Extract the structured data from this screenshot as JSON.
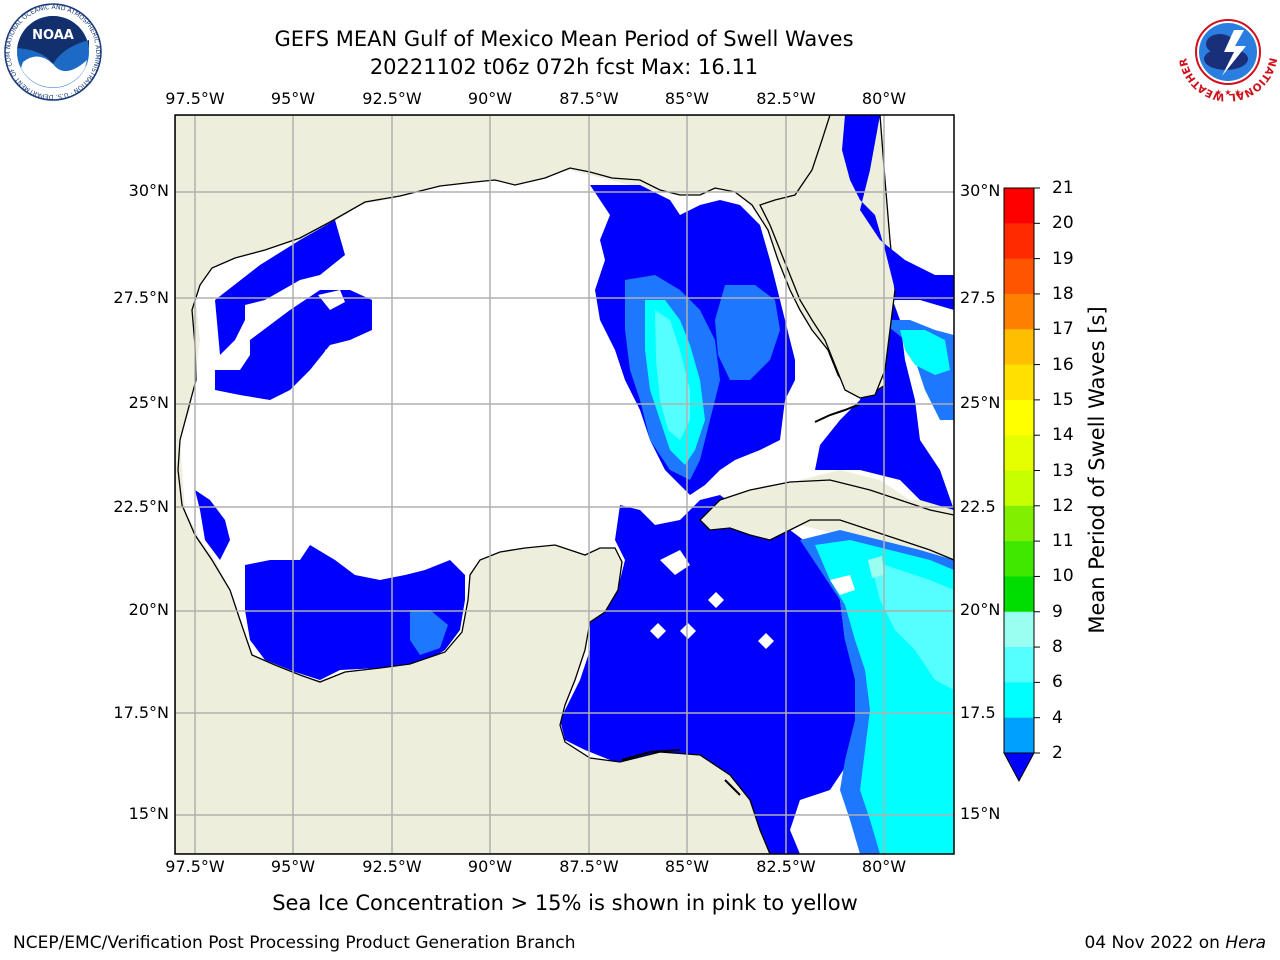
{
  "title": {
    "line1": "GEFS MEAN Gulf of Mexico Mean Period of Swell Waves",
    "line2": "20221102 t06z 072h fcst   Max: 16.11"
  },
  "axes": {
    "lon_labels": [
      "97.5°W",
      "95°W",
      "92.5°W",
      "90°W",
      "87.5°W",
      "85°W",
      "82.5°W",
      "80°W"
    ],
    "lat_labels_left": [
      "30°N",
      "27.5°N",
      "25°N",
      "22.5°N",
      "20°N",
      "17.5°N",
      "15°N"
    ],
    "lat_labels_right": [
      "30°N",
      "27.5",
      "25°N",
      "22.5",
      "20°N",
      "17.5",
      "15°N"
    ]
  },
  "colorbar": {
    "title": "Mean Period of Swell Waves [s]",
    "levels": [
      "21",
      "20",
      "19",
      "18",
      "17",
      "16",
      "15",
      "14",
      "13",
      "12",
      "11",
      "10",
      "9",
      "8",
      "6",
      "4",
      "2"
    ],
    "colors": [
      "#ff0000",
      "#ff2a00",
      "#ff5500",
      "#ff7f00",
      "#ff9f00",
      "#ffbf00",
      "#ffe000",
      "#ffff00",
      "#e6ff00",
      "#c8ff00",
      "#80f000",
      "#40e800",
      "#00dd00",
      "#55ff70",
      "#99fff0",
      "#55ffff",
      "#00ffff",
      "#00a0ff",
      "#0000ff"
    ]
  },
  "legend_note": "Sea Ice Concentration > 15% is shown in pink to yellow",
  "footer": {
    "left": "NCEP/EMC/Verification Post Processing Product Generation Branch",
    "date": "04 Nov 2022 on ",
    "host": "Hera"
  },
  "logos": {
    "left": "NOAA",
    "left_ring": "NATIONAL OCEANIC AND ATMOSPHERIC ADMINISTRATION · U.S. DEPARTMENT OF COMMERCE",
    "right": "NATIONAL WEATHER SERVICE"
  },
  "map_colors": {
    "land": "#eeeedd",
    "sea_white": "#ffffff",
    "blue": "#0000ff",
    "mid_blue": "#1e78ff",
    "cyan": "#00ffff",
    "light_cyan": "#55ffff",
    "pale": "#99fff0",
    "green": "#40e040",
    "lime": "#c8ff00",
    "yellow": "#ffff00"
  }
}
